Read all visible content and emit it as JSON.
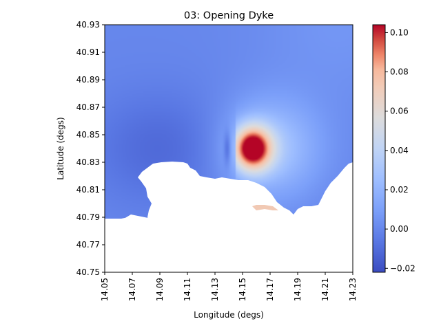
{
  "chart_data": {
    "type": "heatmap",
    "title": "03: Opening Dyke",
    "xlabel": "Longitude (degs)",
    "ylabel": "Latitude (degs)",
    "xlim": [
      14.05,
      14.23
    ],
    "ylim": [
      40.75,
      40.93
    ],
    "x_ticks": [
      14.05,
      14.07,
      14.09,
      14.11,
      14.13,
      14.15,
      14.17,
      14.19,
      14.21,
      14.23
    ],
    "x_tick_labels": [
      "14.05",
      "14.07",
      "14.09",
      "14.11",
      "14.13",
      "14.15",
      "14.17",
      "14.19",
      "14.21",
      "14.23"
    ],
    "y_ticks": [
      40.75,
      40.77,
      40.79,
      40.81,
      40.83,
      40.85,
      40.87,
      40.89,
      40.91,
      40.93
    ],
    "y_tick_labels": [
      "40.75",
      "40.77",
      "40.79",
      "40.81",
      "40.83",
      "40.85",
      "40.87",
      "40.89",
      "40.91",
      "40.93"
    ],
    "colormap": "coolwarm",
    "color_range": [
      -0.022,
      0.104
    ],
    "colorbar_ticks": [
      -0.02,
      0.0,
      0.02,
      0.04,
      0.06,
      0.08,
      0.1
    ],
    "colorbar_tick_labels": [
      "−0.02",
      "0.00",
      "0.02",
      "0.04",
      "0.06",
      "0.08",
      "0.10"
    ],
    "field_features": {
      "max_value": 0.104,
      "max_location": [
        14.157,
        40.84
      ],
      "min_value": -0.022,
      "min_location": [
        14.139,
        40.84
      ],
      "negative_lobe_west_center": [
        14.09,
        40.84
      ],
      "masked_region": "coastline / sea area in lower part (no data, white)"
    },
    "colors": {
      "min": "#3b4cc0",
      "mid": "#dddddd",
      "max": "#b40426"
    }
  }
}
